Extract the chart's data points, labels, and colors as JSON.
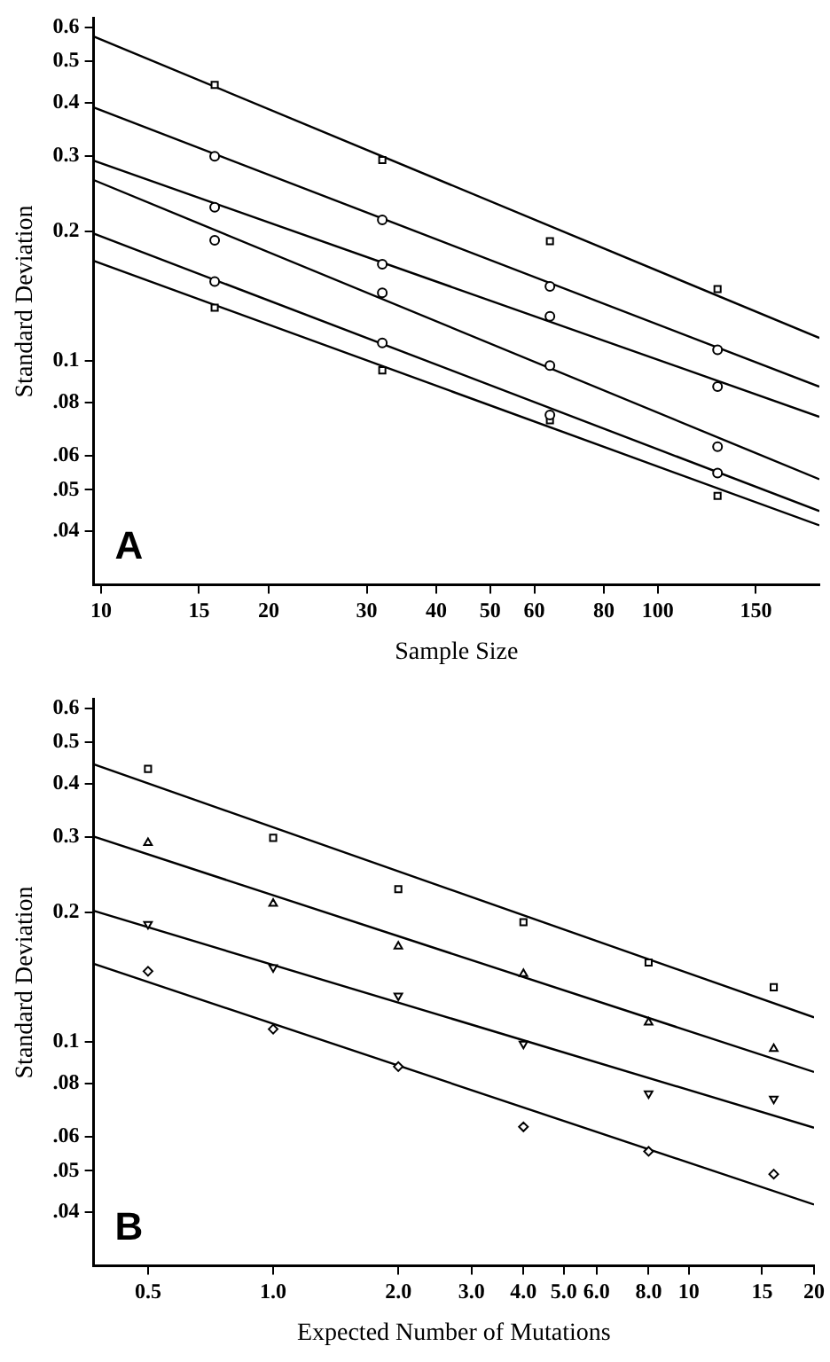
{
  "chart_data": [
    {
      "type": "scatter",
      "xlabel": "Sample Size",
      "ylabel": "Standard Deviation",
      "log": "xy",
      "grid": false,
      "legend": false,
      "annotations": [
        "A"
      ],
      "xlim": [
        9.7,
        195
      ],
      "xticks": [
        10,
        15,
        20,
        30,
        40,
        50,
        60,
        80,
        100,
        150
      ],
      "ylim": [
        0.03,
        0.63
      ],
      "yticks": [
        0.6,
        0.5,
        0.4,
        0.3,
        0.2,
        0.1,
        {
          "value": 0.08,
          "label": ".08"
        },
        {
          "value": 0.06,
          "label": ".06"
        },
        {
          "value": 0.05,
          "label": ".05"
        },
        {
          "value": 0.04,
          "label": ".04"
        }
      ],
      "series": [
        {
          "type": "scatter",
          "marker": "square",
          "color": "#000000",
          "x": [
            16,
            32,
            64,
            128
          ],
          "values": [
            0.44,
            0.294,
            0.19,
            0.147
          ]
        },
        {
          "type": "scatter",
          "marker": "circle",
          "color": "#000000",
          "x": [
            16,
            32,
            64,
            128
          ],
          "values": [
            0.3,
            0.213,
            0.149,
            0.106
          ]
        },
        {
          "type": "scatter",
          "marker": "circle",
          "color": "#000000",
          "x": [
            16,
            32,
            64,
            128
          ],
          "values": [
            0.228,
            0.168,
            0.127,
            0.087
          ]
        },
        {
          "type": "scatter",
          "marker": "circle",
          "color": "#000000",
          "x": [
            16,
            32,
            64,
            128
          ],
          "values": [
            0.191,
            0.144,
            0.0975,
            0.063
          ]
        },
        {
          "type": "scatter",
          "marker": "circle",
          "color": "#000000",
          "x": [
            16,
            32,
            64,
            128
          ],
          "values": [
            0.153,
            0.11,
            0.0747,
            0.0547
          ]
        },
        {
          "type": "scatter",
          "marker": "square",
          "color": "#000000",
          "x": [
            16,
            32,
            64,
            128
          ],
          "values": [
            0.133,
            0.095,
            0.0726,
            0.0484
          ]
        },
        {
          "type": "line",
          "color": "#000000",
          "x": [
            9.7,
            195
          ],
          "values": [
            0.571,
            0.113
          ]
        },
        {
          "type": "line",
          "color": "#000000",
          "x": [
            9.7,
            195
          ],
          "values": [
            0.39,
            0.087
          ]
        },
        {
          "type": "line",
          "color": "#000000",
          "x": [
            9.7,
            195
          ],
          "values": [
            0.293,
            0.074
          ]
        },
        {
          "type": "line",
          "color": "#000000",
          "x": [
            9.7,
            195
          ],
          "values": [
            0.264,
            0.0529
          ]
        },
        {
          "type": "line",
          "color": "#000000",
          "x": [
            9.7,
            195
          ],
          "values": [
            0.198,
            0.0446
          ]
        },
        {
          "type": "line",
          "color": "#000000",
          "x": [
            9.7,
            195
          ],
          "values": [
            0.171,
            0.0413
          ]
        }
      ]
    },
    {
      "type": "scatter",
      "xlabel": "Expected Number of Mutations",
      "ylabel": "Standard Deviation",
      "log": "xy",
      "grid": false,
      "legend": false,
      "annotations": [
        "B"
      ],
      "xlim": [
        0.37,
        20
      ],
      "xticks": [
        0.5,
        {
          "value": 1,
          "label": "1.0"
        },
        {
          "value": 2,
          "label": "2.0"
        },
        {
          "value": 3,
          "label": "3.0"
        },
        {
          "value": 4,
          "label": "4.0"
        },
        {
          "value": 5,
          "label": "5.0"
        },
        {
          "value": 6,
          "label": "6.0"
        },
        {
          "value": 8,
          "label": "8.0"
        },
        10,
        15,
        20
      ],
      "ylim": [
        0.03,
        0.63
      ],
      "yticks": [
        0.6,
        0.5,
        0.4,
        0.3,
        0.2,
        0.1,
        {
          "value": 0.08,
          "label": ".08"
        },
        {
          "value": 0.06,
          "label": ".06"
        },
        {
          "value": 0.05,
          "label": ".05"
        },
        {
          "value": 0.04,
          "label": ".04"
        }
      ],
      "series": [
        {
          "type": "scatter",
          "marker": "square",
          "color": "#000000",
          "x": [
            0.5,
            1,
            2,
            4,
            8,
            16
          ],
          "values": [
            0.433,
            0.299,
            0.227,
            0.19,
            0.153,
            0.134
          ]
        },
        {
          "type": "scatter",
          "marker": "triangle",
          "color": "#000000",
          "x": [
            0.5,
            1,
            2,
            4,
            8,
            16
          ],
          "values": [
            0.291,
            0.21,
            0.167,
            0.144,
            0.111,
            0.0963
          ]
        },
        {
          "type": "scatter",
          "marker": "triangle-down",
          "color": "#000000",
          "x": [
            0.5,
            1,
            2,
            4,
            8,
            16
          ],
          "values": [
            0.188,
            0.149,
            0.128,
            0.0988,
            0.0757,
            0.0736
          ]
        },
        {
          "type": "scatter",
          "marker": "diamond",
          "color": "#000000",
          "x": [
            0.5,
            1,
            2,
            4,
            8,
            16
          ],
          "values": [
            0.146,
            0.107,
            0.0875,
            0.0633,
            0.0555,
            0.0491
          ]
        },
        {
          "type": "line",
          "color": "#000000",
          "x": [
            0.37,
            20
          ],
          "values": [
            0.444,
            0.114
          ]
        },
        {
          "type": "line",
          "color": "#000000",
          "x": [
            0.37,
            20
          ],
          "values": [
            0.301,
            0.085
          ]
        },
        {
          "type": "line",
          "color": "#000000",
          "x": [
            0.37,
            20
          ],
          "values": [
            0.202,
            0.063
          ]
        },
        {
          "type": "line",
          "color": "#000000",
          "x": [
            0.37,
            20
          ],
          "values": [
            0.152,
            0.0417
          ]
        }
      ]
    }
  ]
}
